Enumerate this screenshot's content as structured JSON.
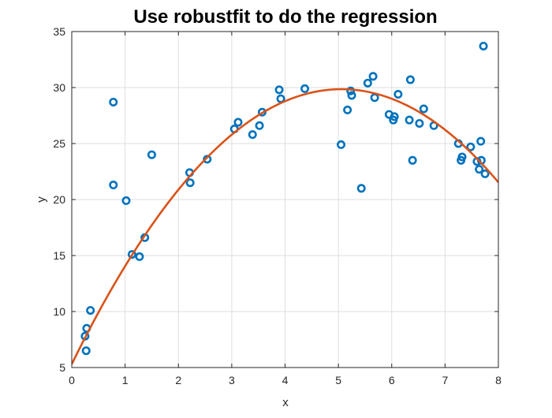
{
  "chart_data": {
    "type": "scatter",
    "title": "Use robustfit to do the regression",
    "xlabel": "x",
    "ylabel": "y",
    "xlim": [
      0,
      8
    ],
    "ylim": [
      5,
      35
    ],
    "xticks": [
      0,
      1,
      2,
      3,
      4,
      5,
      6,
      7,
      8
    ],
    "yticks": [
      5,
      10,
      15,
      20,
      25,
      30,
      35
    ],
    "xtick_labels": [
      "0",
      "1",
      "2",
      "3",
      "4",
      "5",
      "6",
      "7",
      "8"
    ],
    "ytick_labels": [
      "5",
      "10",
      "15",
      "20",
      "25",
      "30",
      "35"
    ],
    "grid": true,
    "legend": "none",
    "series": [
      {
        "kind": "scatter",
        "marker": "circle-open",
        "color": "#0072BD",
        "points": [
          [
            0.25,
            7.8
          ],
          [
            0.27,
            6.5
          ],
          [
            0.28,
            8.5
          ],
          [
            0.35,
            10.1
          ],
          [
            0.78,
            28.7
          ],
          [
            0.78,
            21.3
          ],
          [
            1.02,
            19.9
          ],
          [
            1.13,
            15.1
          ],
          [
            1.27,
            14.9
          ],
          [
            1.37,
            16.6
          ],
          [
            1.5,
            24.0
          ],
          [
            2.21,
            22.4
          ],
          [
            2.22,
            21.5
          ],
          [
            2.54,
            23.6
          ],
          [
            3.05,
            26.3
          ],
          [
            3.12,
            26.9
          ],
          [
            3.39,
            25.8
          ],
          [
            3.52,
            26.6
          ],
          [
            3.57,
            27.8
          ],
          [
            3.89,
            29.8
          ],
          [
            3.92,
            29.0
          ],
          [
            4.37,
            29.9
          ],
          [
            5.05,
            24.9
          ],
          [
            5.17,
            28.0
          ],
          [
            5.23,
            29.7
          ],
          [
            5.25,
            29.3
          ],
          [
            5.43,
            21.0
          ],
          [
            5.55,
            30.4
          ],
          [
            5.65,
            31.0
          ],
          [
            5.68,
            29.1
          ],
          [
            5.95,
            27.6
          ],
          [
            6.03,
            27.1
          ],
          [
            6.05,
            27.4
          ],
          [
            6.12,
            29.4
          ],
          [
            6.33,
            27.1
          ],
          [
            6.35,
            30.7
          ],
          [
            6.39,
            23.5
          ],
          [
            6.52,
            26.8
          ],
          [
            6.6,
            28.1
          ],
          [
            6.79,
            26.6
          ],
          [
            7.25,
            25.0
          ],
          [
            7.3,
            23.5
          ],
          [
            7.32,
            23.8
          ],
          [
            7.48,
            24.7
          ],
          [
            7.6,
            23.4
          ],
          [
            7.64,
            22.7
          ],
          [
            7.67,
            25.2
          ],
          [
            7.68,
            23.5
          ],
          [
            7.72,
            33.7
          ],
          [
            7.75,
            22.3
          ]
        ]
      },
      {
        "kind": "line",
        "color": "#D95319",
        "curve": "quadratic",
        "coefficients": [
          5.3,
          9.71,
          -0.96
        ],
        "x_range": [
          0,
          8
        ]
      }
    ]
  }
}
